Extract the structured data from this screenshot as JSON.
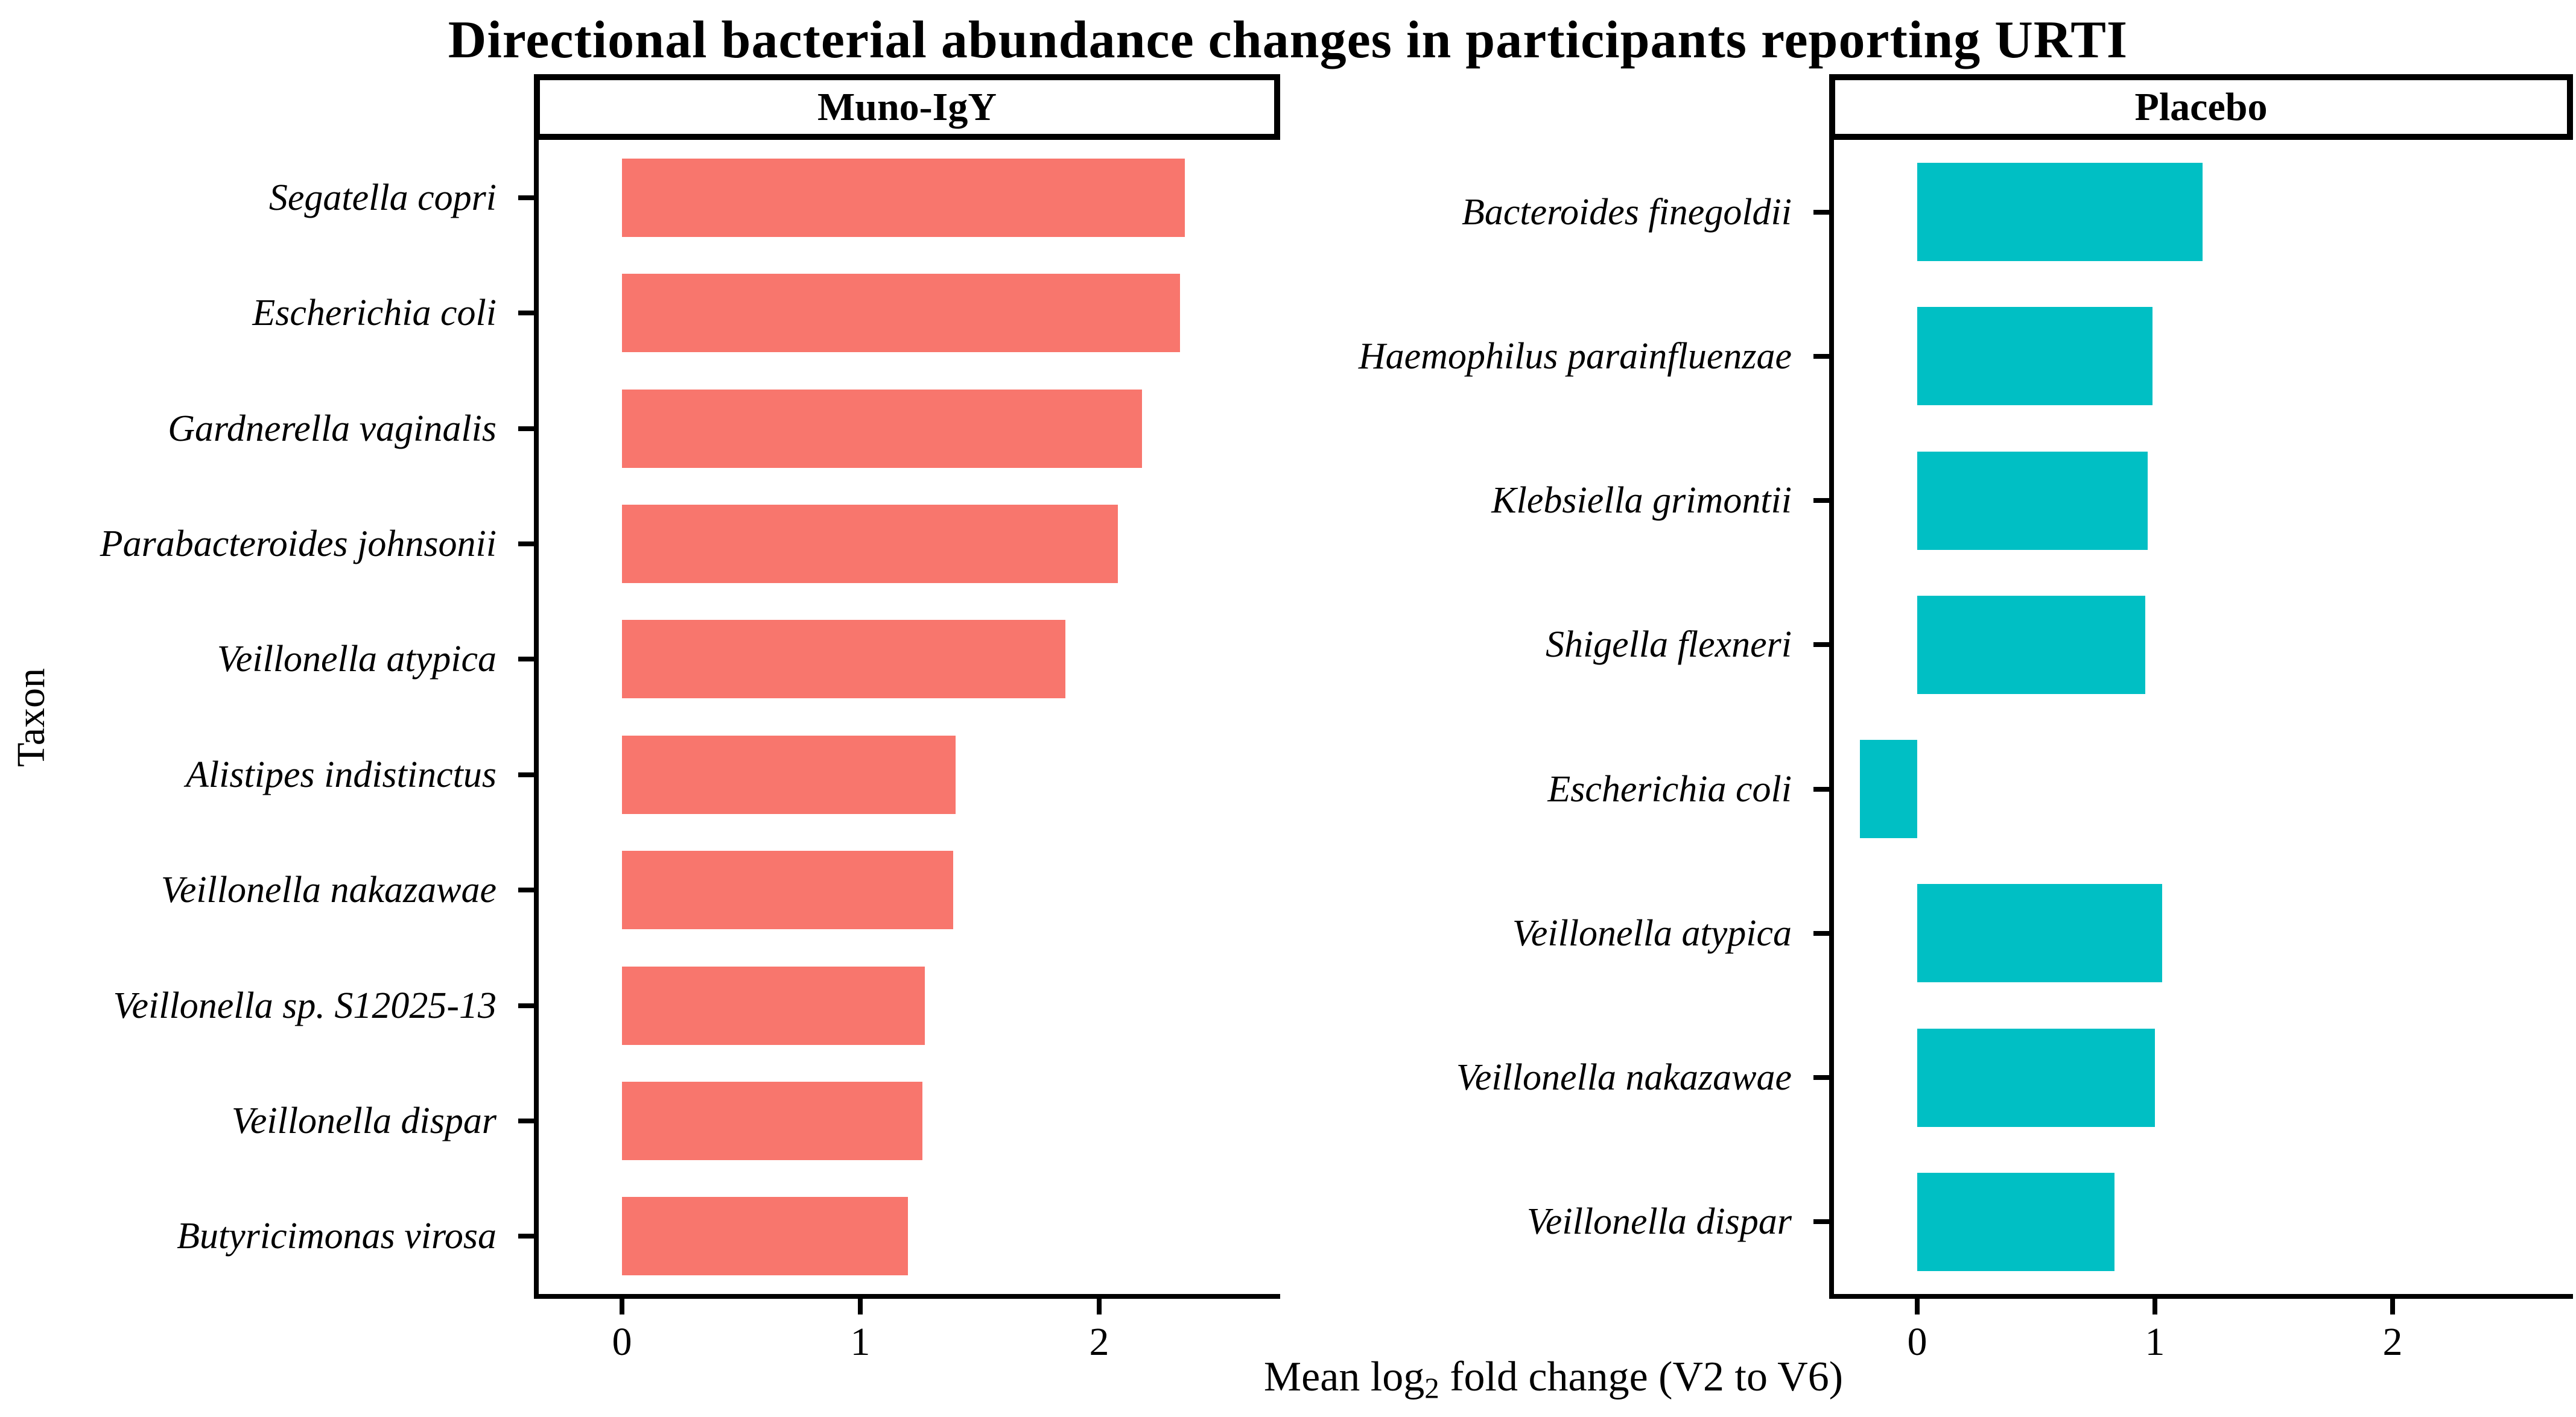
{
  "figure": {
    "background": "#ffffff",
    "text_color": "#000000",
    "axis_color": "#000000"
  },
  "chart_data": {
    "type": "bar",
    "orientation": "horizontal",
    "title": "Directional bacterial abundance changes in participants reporting URTI",
    "ylabel": "Taxon",
    "xlabel_parts": {
      "prefix": "Mean log",
      "sub": "2",
      "suffix": " fold change (V2 to V6)"
    },
    "x_ticks": [
      0,
      1,
      2
    ],
    "xlim": [
      -0.37,
      2.76
    ],
    "grid": false,
    "legend": "none",
    "facets": [
      {
        "label": "Muno-IgY",
        "bar_color": "#F8766D",
        "bars": [
          {
            "taxon": "Segatella copri",
            "value": 2.36
          },
          {
            "taxon": "Escherichia coli",
            "value": 2.34
          },
          {
            "taxon": "Gardnerella vaginalis",
            "value": 2.18
          },
          {
            "taxon": "Parabacteroides johnsonii",
            "value": 2.08
          },
          {
            "taxon": "Veillonella atypica",
            "value": 1.86
          },
          {
            "taxon": "Alistipes indistinctus",
            "value": 1.4
          },
          {
            "taxon": "Veillonella nakazawae",
            "value": 1.39
          },
          {
            "taxon": "Veillonella sp. S12025-13",
            "value": 1.27
          },
          {
            "taxon": "Veillonella dispar",
            "value": 1.26
          },
          {
            "taxon": "Butyricimonas virosa",
            "value": 1.2
          }
        ]
      },
      {
        "label": "Placebo",
        "bar_color": "#00BFC4",
        "bars": [
          {
            "taxon": "Bacteroides finegoldii",
            "value": 1.2
          },
          {
            "taxon": "Haemophilus parainfluenzae",
            "value": 0.99
          },
          {
            "taxon": "Klebsiella grimontii",
            "value": 0.97
          },
          {
            "taxon": "Shigella flexneri",
            "value": 0.96
          },
          {
            "taxon": "Escherichia coli",
            "value": -0.24
          },
          {
            "taxon": "Veillonella atypica",
            "value": 1.03
          },
          {
            "taxon": "Veillonella nakazawae",
            "value": 1.0
          },
          {
            "taxon": "Veillonella dispar",
            "value": 0.83
          }
        ]
      }
    ]
  }
}
